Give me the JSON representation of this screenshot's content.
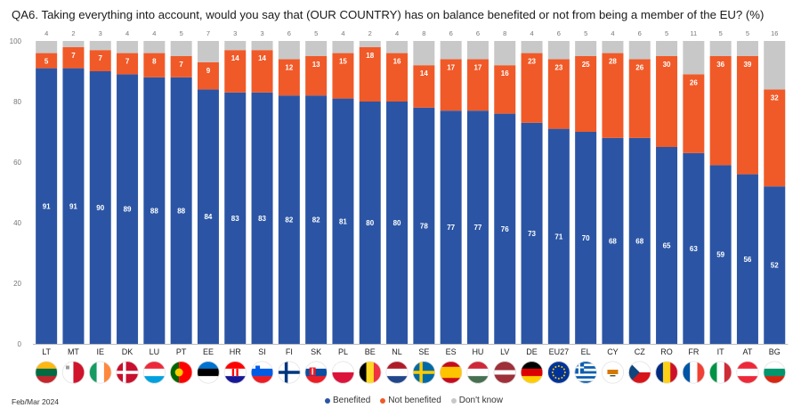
{
  "title": "QA6. Taking everything into account, would you say that (OUR COUNTRY) has on balance benefited or not from being a member of the EU? (%)",
  "footer": {
    "date": "Feb/Mar 2024"
  },
  "colors": {
    "benefited": "#2b55a4",
    "not_benefited": "#f05a28",
    "dont_know": "#c8c8c8"
  },
  "chart_data": {
    "type": "bar",
    "stacked": true,
    "categories": [
      "LT",
      "MT",
      "IE",
      "DK",
      "LU",
      "PT",
      "EE",
      "HR",
      "SI",
      "FI",
      "SK",
      "PL",
      "BE",
      "NL",
      "SE",
      "ES",
      "HU",
      "LV",
      "DE",
      "EU27",
      "EL",
      "CY",
      "CZ",
      "RO",
      "FR",
      "IT",
      "AT",
      "BG"
    ],
    "series": [
      {
        "name": "Benefited",
        "values": [
          91,
          91,
          90,
          89,
          88,
          88,
          84,
          83,
          83,
          82,
          82,
          81,
          80,
          80,
          78,
          77,
          77,
          76,
          73,
          71,
          70,
          68,
          68,
          65,
          63,
          59,
          56,
          52
        ]
      },
      {
        "name": "Not benefited",
        "values": [
          5,
          7,
          7,
          7,
          8,
          7,
          9,
          14,
          14,
          12,
          13,
          15,
          18,
          16,
          14,
          17,
          17,
          16,
          23,
          23,
          25,
          28,
          26,
          30,
          26,
          36,
          39,
          32
        ]
      },
      {
        "name": "Don't know",
        "values": [
          4,
          2,
          3,
          4,
          4,
          5,
          7,
          3,
          3,
          6,
          5,
          4,
          2,
          4,
          8,
          6,
          6,
          8,
          4,
          6,
          5,
          4,
          6,
          5,
          11,
          5,
          5,
          16
        ]
      }
    ],
    "y_ticks": [
      "0",
      "20",
      "40",
      "60",
      "80",
      "100"
    ],
    "ylim": [
      0,
      100
    ],
    "grid": false,
    "legend_position": "bottom",
    "flags": [
      "lithuania-flag",
      "malta-flag",
      "ireland-flag",
      "denmark-flag",
      "luxembourg-flag",
      "portugal-flag",
      "estonia-flag",
      "croatia-flag",
      "slovenia-flag",
      "finland-flag",
      "slovakia-flag",
      "poland-flag",
      "belgium-flag",
      "netherlands-flag",
      "sweden-flag",
      "spain-flag",
      "hungary-flag",
      "latvia-flag",
      "germany-flag",
      "eu-flag",
      "greece-flag",
      "cyprus-flag",
      "czechia-flag",
      "romania-flag",
      "france-flag",
      "italy-flag",
      "austria-flag",
      "bulgaria-flag"
    ]
  }
}
